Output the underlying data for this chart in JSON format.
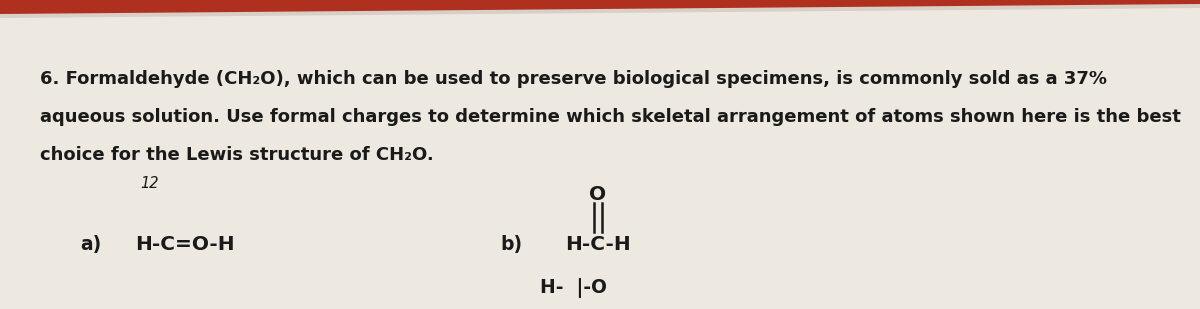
{
  "red_bg": "#b03020",
  "paper_color": "#ede8e0",
  "text_color": "#1a1a1a",
  "main_text_line1": "6. Formaldehyde (CH₂O), which can be used to preserve biological specimens, is commonly sold as a 37%",
  "main_text_line2": "aqueous solution. Use formal charges to determine which skeletal arrangement of atoms shown here is the best",
  "main_text_line3": "choice for the Lewis structure of CH₂O.",
  "number_label": "12",
  "label_a": "a)",
  "struct_a": "H-C=O-H",
  "label_b": "b)",
  "struct_b_O": "O",
  "struct_b_bond": "||",
  "struct_b_HCH": "H-C-H",
  "bottom_partial": "H-  |-O",
  "text_fontsize": 13.0,
  "struct_fontsize": 14.5,
  "label_fontsize": 13.5,
  "small_fontsize": 10.5
}
